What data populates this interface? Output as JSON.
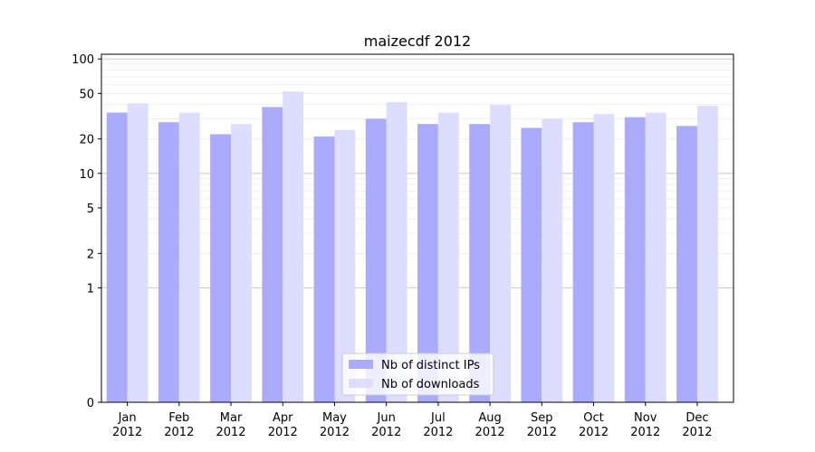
{
  "chart_data": {
    "type": "bar",
    "title": "maizecdf 2012",
    "categories": [
      [
        "Jan",
        "2012"
      ],
      [
        "Feb",
        "2012"
      ],
      [
        "Mar",
        "2012"
      ],
      [
        "Apr",
        "2012"
      ],
      [
        "May",
        "2012"
      ],
      [
        "Jun",
        "2012"
      ],
      [
        "Jul",
        "2012"
      ],
      [
        "Aug",
        "2012"
      ],
      [
        "Sep",
        "2012"
      ],
      [
        "Oct",
        "2012"
      ],
      [
        "Nov",
        "2012"
      ],
      [
        "Dec",
        "2012"
      ]
    ],
    "series": [
      {
        "name": "Nb of distinct IPs",
        "color": "#aaaaff",
        "values": [
          34,
          28,
          22,
          38,
          21,
          30,
          27,
          27,
          25,
          28,
          31,
          26
        ]
      },
      {
        "name": "Nb of downloads",
        "color": "#ddddff",
        "values": [
          41,
          34,
          27,
          52,
          24,
          42,
          34,
          40,
          30,
          33,
          34,
          39
        ]
      }
    ],
    "y_scale": "symlog",
    "ylim": [
      0,
      110
    ],
    "y_ticks": [
      {
        "value": 0,
        "label": "0"
      },
      {
        "value": 1,
        "label": "1"
      },
      {
        "value": 2,
        "label": "2"
      },
      {
        "value": 5,
        "label": "5"
      },
      {
        "value": 10,
        "label": "10"
      },
      {
        "value": 20,
        "label": "20"
      },
      {
        "value": 50,
        "label": "50"
      },
      {
        "value": 100,
        "label": "100"
      }
    ],
    "major_grid": [
      1,
      10,
      100
    ],
    "minor_grid": [
      2,
      3,
      4,
      5,
      6,
      7,
      8,
      9,
      20,
      30,
      40,
      50,
      60,
      70,
      80,
      90
    ],
    "grid_color": "#c8c8c8",
    "minor_grid_color": "#ebebeb",
    "legend_position": "lower-center"
  }
}
